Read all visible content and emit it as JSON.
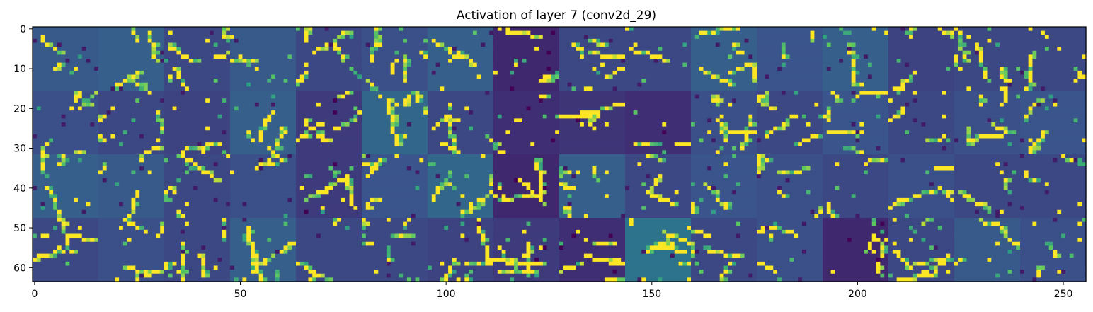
{
  "chart_data": {
    "type": "heatmap",
    "title": "Activation of layer 7 (conv2d_29)",
    "xlabel": "",
    "ylabel": "",
    "colormap": "viridis",
    "colormap_stops": [
      "#440154",
      "#3b528b",
      "#21918c",
      "#5ec962",
      "#fde725"
    ],
    "grid": false,
    "xlim": [
      0,
      256
    ],
    "ylim": [
      64,
      0
    ],
    "x_ticks": [
      0,
      50,
      100,
      150,
      200,
      250
    ],
    "y_ticks": [
      0,
      10,
      20,
      30,
      40,
      50,
      60
    ],
    "x_tick_labels": [
      "0",
      "50",
      "100",
      "150",
      "200",
      "250"
    ],
    "y_tick_labels": [
      "0",
      "10",
      "20",
      "30",
      "40",
      "50",
      "60"
    ],
    "image_cols": 256,
    "image_rows": 64,
    "tile_cols": 16,
    "tile_rows": 4,
    "tile_size": 16,
    "tile_background": [
      [
        0.28,
        0.3,
        0.22,
        0.28,
        0.22,
        0.24,
        0.3,
        0.12,
        0.22,
        0.22,
        0.3,
        0.26,
        0.3,
        0.2,
        0.22,
        0.22
      ],
      [
        0.24,
        0.22,
        0.2,
        0.3,
        0.18,
        0.33,
        0.22,
        0.14,
        0.16,
        0.14,
        0.24,
        0.22,
        0.26,
        0.22,
        0.24,
        0.26
      ],
      [
        0.3,
        0.28,
        0.22,
        0.24,
        0.18,
        0.26,
        0.33,
        0.12,
        0.3,
        0.22,
        0.26,
        0.24,
        0.22,
        0.24,
        0.22,
        0.22
      ],
      [
        0.22,
        0.24,
        0.22,
        0.3,
        0.22,
        0.22,
        0.2,
        0.18,
        0.14,
        0.38,
        0.22,
        0.24,
        0.12,
        0.22,
        0.28,
        0.24
      ]
    ]
  }
}
